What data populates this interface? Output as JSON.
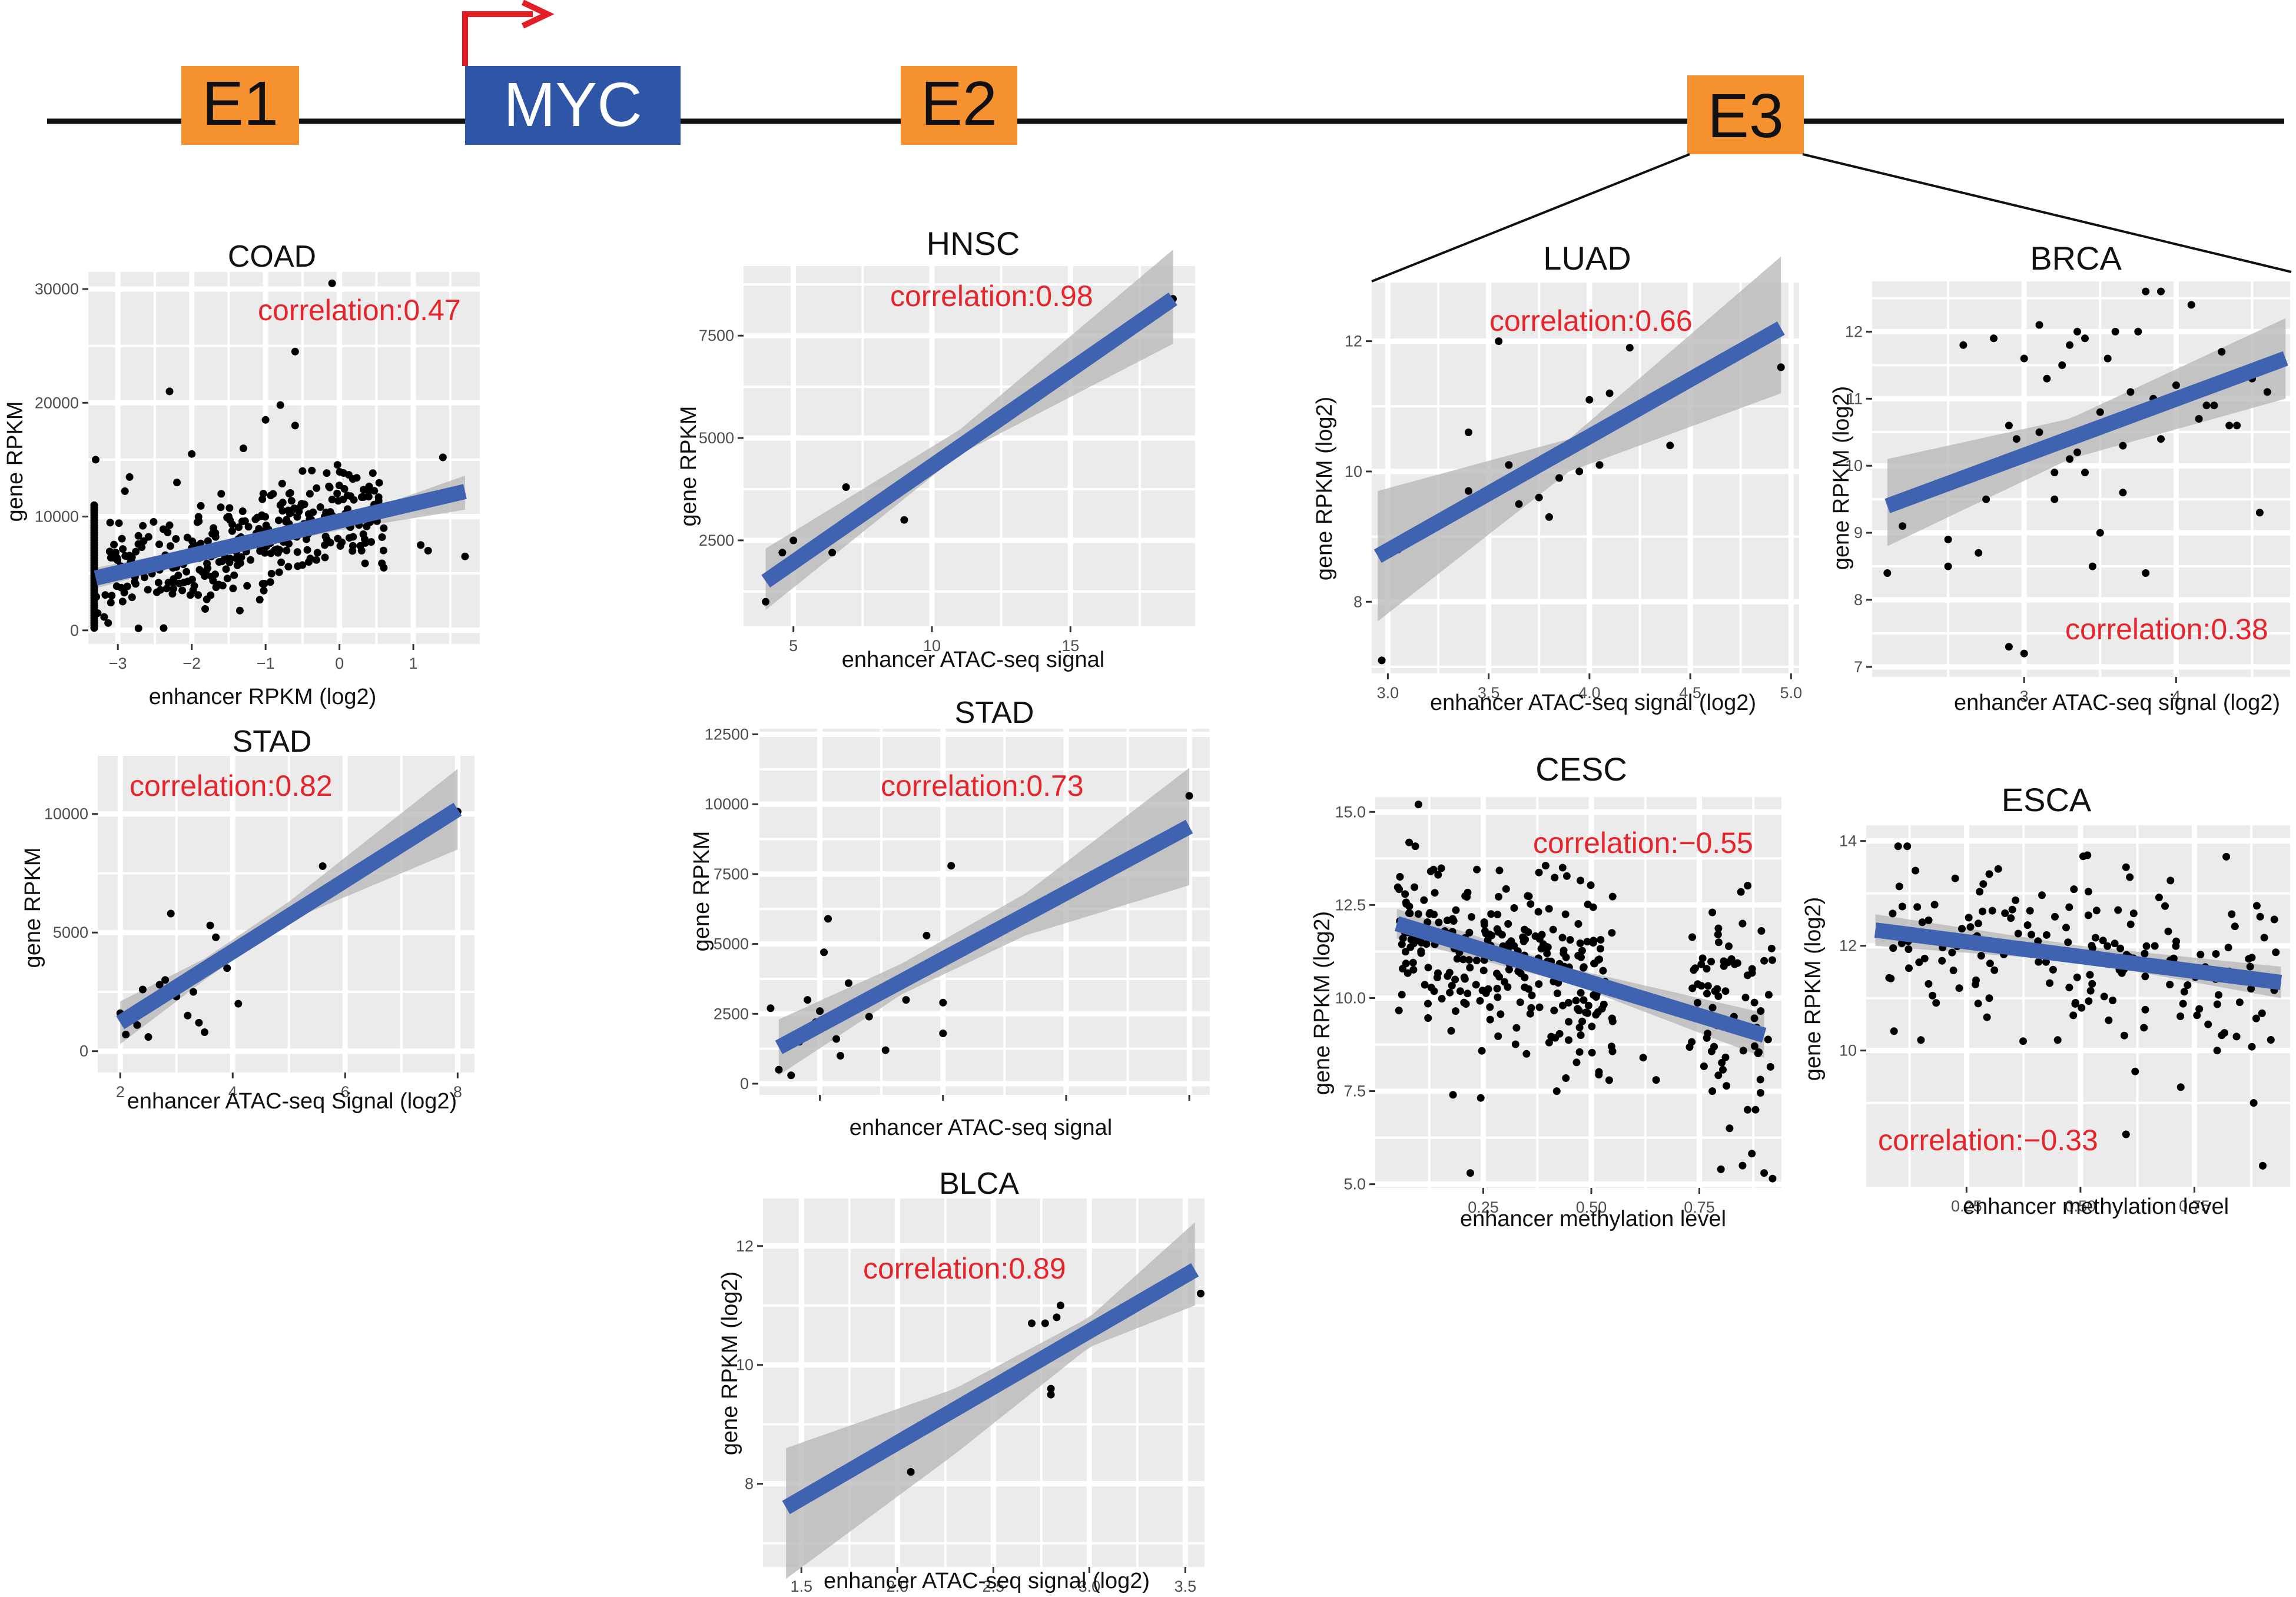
{
  "colors": {
    "enhancer": "#f5922f",
    "gene": "#2f56a6",
    "tss_arrow": "#e31e24",
    "line": "#111111",
    "panel_bg": "#ebebeb",
    "grid": "#ffffff",
    "fit": "#3f63b0",
    "ci": "#b3b3b3",
    "point": "#000000",
    "corr_text": "#e8242a"
  },
  "locus": {
    "elements": [
      {
        "id": "e1",
        "label": "E1",
        "kind": "enhancer"
      },
      {
        "id": "myc",
        "label": "MYC",
        "kind": "gene"
      },
      {
        "id": "e2",
        "label": "E2",
        "kind": "enhancer"
      },
      {
        "id": "e3",
        "label": "E3",
        "kind": "enhancer"
      }
    ]
  },
  "chart_data": [
    {
      "id": "coad",
      "type": "scatter",
      "title": "COAD",
      "xlabel": "enhancer RPKM (log2)",
      "ylabel": "gene RPKM",
      "xlim": [
        -3.4,
        1.9
      ],
      "ylim": [
        -1200,
        31500
      ],
      "xticks": [
        -3,
        -2,
        -1,
        0,
        1
      ],
      "xticklabels": [
        "−3",
        "−2",
        "−1",
        "0",
        "1"
      ],
      "yticks": [
        0,
        10000,
        20000,
        30000
      ],
      "yticklabels": [
        "0",
        "10000",
        "20000",
        "30000"
      ],
      "correlation": "correlation:0.47",
      "fit": {
        "x0": -3.3,
        "y0": 4600,
        "x1": 1.7,
        "y1": 12200
      },
      "ci": {
        "x": [
          -3.3,
          -1.5,
          0,
          1.7
        ],
        "lo": [
          3700,
          6800,
          8800,
          10600
        ],
        "hi": [
          5500,
          7800,
          9700,
          13600
        ]
      },
      "points": [
        [
          -3.3,
          15000
        ],
        [
          -2.3,
          21000
        ],
        [
          -2.0,
          15500
        ],
        [
          -1.6,
          12000
        ],
        [
          -1.3,
          16000
        ],
        [
          -1.0,
          18500
        ],
        [
          -0.8,
          19800
        ],
        [
          -0.6,
          18000
        ],
        [
          -0.6,
          24500
        ],
        [
          -0.1,
          30500
        ],
        [
          -0.5,
          14000
        ],
        [
          -0.4,
          12000
        ],
        [
          1.4,
          15200
        ],
        [
          1.7,
          6500
        ],
        [
          0.3,
          7000
        ],
        [
          0.6,
          5500
        ],
        [
          1.1,
          7500
        ],
        [
          1.2,
          7000
        ],
        [
          -2.2,
          13000
        ],
        [
          -1.5,
          10000
        ],
        [
          -0.8,
          11000
        ],
        [
          -0.2,
          10000
        ]
      ],
      "cloud": {
        "n": 340,
        "xmin": -3.3,
        "xmax": 0.6,
        "sdy": 2300,
        "seed": 11
      },
      "pileup": {
        "x": -3.32,
        "ymin": 200,
        "ymax": 11000,
        "n": 50
      }
    },
    {
      "id": "stad1",
      "type": "scatter",
      "title": "STAD",
      "xlabel": "enhancer ATAC-seq Signal (log2)",
      "ylabel": "gene RPKM",
      "xlim": [
        1.6,
        8.3
      ],
      "ylim": [
        -900,
        12500
      ],
      "xticks": [
        2,
        4,
        6,
        8
      ],
      "xticklabels": [
        "2",
        "4",
        "6",
        "8"
      ],
      "yticks": [
        0,
        5000,
        10000
      ],
      "yticklabels": [
        "0",
        "5000",
        "10000"
      ],
      "correlation": "correlation:0.82",
      "fit": {
        "x0": 2.0,
        "y0": 1200,
        "x1": 8.0,
        "y1": 10200
      },
      "ci": {
        "x": [
          2.0,
          3.5,
          5.0,
          8.0
        ],
        "lo": [
          300,
          3000,
          5500,
          8500
        ],
        "hi": [
          2100,
          3900,
          6300,
          11900
        ]
      },
      "points": [
        [
          2.0,
          1600
        ],
        [
          2.1,
          700
        ],
        [
          2.3,
          1100
        ],
        [
          2.5,
          600
        ],
        [
          2.6,
          2000
        ],
        [
          2.7,
          2800
        ],
        [
          2.8,
          3000
        ],
        [
          2.9,
          5800
        ],
        [
          3.0,
          2300
        ],
        [
          3.2,
          1500
        ],
        [
          3.3,
          2500
        ],
        [
          3.4,
          1200
        ],
        [
          3.5,
          800
        ],
        [
          3.6,
          5300
        ],
        [
          3.7,
          4800
        ],
        [
          3.9,
          3500
        ],
        [
          4.1,
          2000
        ],
        [
          5.6,
          7800
        ],
        [
          8.0,
          10100
        ],
        [
          2.2,
          1300
        ],
        [
          2.4,
          2600
        ]
      ]
    },
    {
      "id": "hnsc",
      "type": "scatter",
      "title": "HNSC",
      "xlabel": "enhancer ATAC-seq signal",
      "ylabel": "gene RPKM",
      "xlim": [
        3.2,
        19.5
      ],
      "ylim": [
        400,
        9200
      ],
      "xticks": [
        5,
        10,
        15
      ],
      "xticklabels": [
        "5",
        "10",
        "15"
      ],
      "yticks": [
        2500,
        5000,
        7500
      ],
      "yticklabels": [
        "2500",
        "5000",
        "7500"
      ],
      "correlation": "correlation:0.98",
      "fit": {
        "x0": 4.0,
        "y0": 1500,
        "x1": 18.7,
        "y1": 8400
      },
      "ci": {
        "x": [
          4.0,
          11.0,
          18.7
        ],
        "lo": [
          800,
          4600,
          7300
        ],
        "hi": [
          2300,
          5200,
          9600
        ]
      },
      "points": [
        [
          4.0,
          1000
        ],
        [
          4.6,
          2200
        ],
        [
          5.0,
          2500
        ],
        [
          6.4,
          2200
        ],
        [
          6.9,
          3800
        ],
        [
          9.0,
          3000
        ],
        [
          18.7,
          8400
        ]
      ]
    },
    {
      "id": "stad2",
      "type": "scatter",
      "title": "STAD",
      "xlabel": "enhancer ATAC-seq signal",
      "ylabel": "gene RPKM",
      "xlim": [
        1.5,
        12.5
      ],
      "ylim": [
        -400,
        12700
      ],
      "xticks": [
        3,
        6,
        9,
        12
      ],
      "xticklabels": [
        "",
        "",
        "",
        ""
      ],
      "yticks": [
        0,
        2500,
        5000,
        7500,
        10000,
        12500
      ],
      "yticklabels": [
        "0",
        "2500",
        "5000",
        "7500",
        "10000",
        "12500"
      ],
      "correlation": "correlation:0.73",
      "fit": {
        "x0": 2.0,
        "y0": 1300,
        "x1": 12.0,
        "y1": 9200
      },
      "ci": {
        "x": [
          2.0,
          5.0,
          8.0,
          12.0
        ],
        "lo": [
          300,
          3200,
          5300,
          7100
        ],
        "hi": [
          2300,
          4300,
          6800,
          11300
        ]
      },
      "points": [
        [
          1.8,
          2700
        ],
        [
          2.0,
          500
        ],
        [
          2.3,
          300
        ],
        [
          2.5,
          1500
        ],
        [
          2.7,
          3000
        ],
        [
          3.0,
          2600
        ],
        [
          3.1,
          4700
        ],
        [
          3.2,
          5900
        ],
        [
          3.4,
          1600
        ],
        [
          3.5,
          1000
        ],
        [
          4.2,
          2400
        ],
        [
          4.6,
          1200
        ],
        [
          5.1,
          3000
        ],
        [
          5.6,
          5300
        ],
        [
          6.0,
          2900
        ],
        [
          6.0,
          1800
        ],
        [
          6.2,
          7800
        ],
        [
          12.0,
          10300
        ],
        [
          2.9,
          2200
        ],
        [
          3.7,
          3600
        ]
      ]
    },
    {
      "id": "blca",
      "type": "scatter",
      "title": "BLCA",
      "xlabel": "enhancer ATAC-seq signal (log2)",
      "ylabel": "gene RPKM (log2)",
      "xlim": [
        1.3,
        3.6
      ],
      "ylim": [
        6.6,
        12.8
      ],
      "xticks": [
        1.5,
        2.0,
        2.5,
        3.0,
        3.5
      ],
      "xticklabels": [
        "1.5",
        "2.0",
        "2.5",
        "3.0",
        "3.5"
      ],
      "yticks": [
        8,
        10,
        12
      ],
      "yticklabels": [
        "8",
        "10",
        "12"
      ],
      "correlation": "correlation:0.89",
      "fit": {
        "x0": 1.42,
        "y0": 7.6,
        "x1": 3.55,
        "y1": 11.6
      },
      "ci": {
        "x": [
          1.42,
          2.3,
          3.0,
          3.55
        ],
        "lo": [
          6.4,
          8.5,
          10.3,
          11.0
        ],
        "hi": [
          8.6,
          9.6,
          10.8,
          12.4
        ]
      },
      "points": [
        [
          2.07,
          8.2
        ],
        [
          2.7,
          10.7
        ],
        [
          2.77,
          10.7
        ],
        [
          2.8,
          9.6
        ],
        [
          2.8,
          9.5
        ],
        [
          2.83,
          10.8
        ],
        [
          2.85,
          11.0
        ],
        [
          3.58,
          11.2
        ]
      ]
    },
    {
      "id": "luad",
      "type": "scatter",
      "title": "LUAD",
      "xlabel": "enhancer ATAC-seq signal (log2)",
      "ylabel": "gene RPKM (log2)",
      "xlim": [
        2.92,
        5.04
      ],
      "ylim": [
        6.9,
        12.9
      ],
      "xticks": [
        3.0,
        3.5,
        4.0,
        4.5,
        5.0
      ],
      "xticklabels": [
        "3.0",
        "3.5",
        "4.0",
        "4.5",
        "5.0"
      ],
      "yticks": [
        8,
        10,
        12
      ],
      "yticklabels": [
        "8",
        "10",
        "12"
      ],
      "correlation": "correlation:0.66",
      "fit": {
        "x0": 2.95,
        "y0": 8.7,
        "x1": 4.95,
        "y1": 12.2
      },
      "ci": {
        "x": [
          2.95,
          3.9,
          4.95
        ],
        "lo": [
          7.7,
          10.0,
          11.2
        ],
        "hi": [
          9.7,
          10.5,
          13.3
        ]
      },
      "points": [
        [
          2.97,
          7.1
        ],
        [
          3.05,
          8.8
        ],
        [
          3.4,
          9.7
        ],
        [
          3.4,
          10.6
        ],
        [
          3.55,
          12.0
        ],
        [
          3.6,
          10.1
        ],
        [
          3.75,
          9.6
        ],
        [
          3.8,
          9.3
        ],
        [
          3.85,
          9.9
        ],
        [
          3.95,
          10.0
        ],
        [
          4.0,
          11.1
        ],
        [
          4.05,
          10.1
        ],
        [
          4.1,
          11.2
        ],
        [
          4.2,
          11.9
        ],
        [
          4.4,
          10.4
        ],
        [
          4.95,
          11.6
        ],
        [
          3.65,
          9.5
        ]
      ]
    },
    {
      "id": "brca",
      "type": "scatter",
      "title": "BRCA",
      "xlabel": "enhancer ATAC-seq signal (log2)",
      "ylabel": "gene RPKM (log2)",
      "xlim": [
        2.0,
        4.75
      ],
      "ylim": [
        6.85,
        12.75
      ],
      "xticks": [
        3,
        4
      ],
      "xticklabels": [
        "3",
        "4"
      ],
      "yticks": [
        7,
        8,
        9,
        10,
        11,
        12
      ],
      "yticklabels": [
        "7",
        "8",
        "9",
        "10",
        "11",
        "12"
      ],
      "correlation": "correlation:0.38",
      "fit": {
        "x0": 2.1,
        "y0": 9.4,
        "x1": 4.72,
        "y1": 11.6
      },
      "ci": {
        "x": [
          2.1,
          3.3,
          4.72
        ],
        "lo": [
          8.8,
          10.1,
          11.0
        ],
        "hi": [
          10.1,
          10.7,
          12.2
        ]
      },
      "points": [
        [
          2.1,
          8.4
        ],
        [
          2.2,
          9.1
        ],
        [
          2.5,
          8.9
        ],
        [
          2.5,
          8.5
        ],
        [
          2.6,
          11.8
        ],
        [
          2.8,
          11.9
        ],
        [
          2.9,
          10.6
        ],
        [
          3.0,
          11.6
        ],
        [
          3.1,
          12.1
        ],
        [
          3.15,
          11.3
        ],
        [
          3.2,
          9.9
        ],
        [
          3.25,
          11.5
        ],
        [
          3.3,
          11.8
        ],
        [
          3.35,
          12.0
        ],
        [
          3.4,
          11.9
        ],
        [
          3.35,
          10.2
        ],
        [
          3.4,
          9.9
        ],
        [
          3.45,
          8.5
        ],
        [
          3.5,
          9.0
        ],
        [
          3.55,
          11.6
        ],
        [
          3.6,
          12.0
        ],
        [
          3.65,
          10.3
        ],
        [
          3.7,
          11.1
        ],
        [
          3.75,
          12.0
        ],
        [
          3.8,
          12.6
        ],
        [
          3.85,
          11.0
        ],
        [
          3.9,
          12.6
        ],
        [
          3.95,
          11.0
        ],
        [
          4.1,
          12.4
        ],
        [
          4.15,
          10.7
        ],
        [
          4.2,
          10.9
        ],
        [
          4.3,
          11.7
        ],
        [
          4.35,
          10.6
        ],
        [
          4.4,
          10.6
        ],
        [
          4.5,
          11.3
        ],
        [
          2.9,
          7.3
        ],
        [
          3.0,
          7.2
        ],
        [
          3.2,
          9.5
        ],
        [
          3.8,
          8.4
        ],
        [
          4.55,
          9.3
        ],
        [
          3.65,
          9.6
        ],
        [
          2.75,
          9.5
        ],
        [
          2.95,
          10.4
        ],
        [
          3.1,
          10.5
        ],
        [
          3.5,
          10.8
        ],
        [
          4.0,
          11.2
        ],
        [
          4.6,
          11.1
        ],
        [
          2.7,
          8.7
        ],
        [
          3.3,
          10.1
        ],
        [
          3.9,
          10.4
        ],
        [
          4.25,
          10.9
        ]
      ]
    },
    {
      "id": "cesc",
      "type": "scatter",
      "title": "CESC",
      "xlabel": "enhancer methylation level",
      "ylabel": "gene RPKM (log2)",
      "xlim": [
        0.0,
        0.94
      ],
      "ylim": [
        4.9,
        15.4
      ],
      "xticks": [
        0.25,
        0.5,
        0.75
      ],
      "xticklabels": [
        "0.25",
        "0.50",
        "0.75"
      ],
      "yticks": [
        5.0,
        7.5,
        10.0,
        12.5,
        15.0
      ],
      "yticklabels": [
        "5.0",
        "7.5",
        "10.0",
        "12.5",
        "15.0"
      ],
      "correlation": "correlation:−0.55",
      "fit": {
        "x0": 0.05,
        "y0": 12.0,
        "x1": 0.9,
        "y1": 9.0
      },
      "ci": {
        "x": [
          0.05,
          0.45,
          0.9
        ],
        "lo": [
          11.6,
          10.4,
          8.4
        ],
        "hi": [
          12.4,
          10.8,
          9.6
        ]
      },
      "points": [
        [
          0.1,
          15.2
        ],
        [
          0.22,
          5.3
        ],
        [
          0.18,
          7.4
        ],
        [
          0.35,
          8.5
        ],
        [
          0.42,
          7.5
        ],
        [
          0.62,
          8.4
        ],
        [
          0.65,
          7.8
        ],
        [
          0.8,
          5.4
        ],
        [
          0.85,
          5.5
        ],
        [
          0.9,
          5.3
        ],
        [
          0.82,
          6.5
        ],
        [
          0.88,
          7.0
        ],
        [
          0.78,
          12.3
        ],
        [
          0.85,
          12.0
        ],
        [
          0.9,
          11.0
        ],
        [
          0.83,
          9.5
        ]
      ],
      "cloud": {
        "n": 280,
        "xmin": 0.05,
        "xmax": 0.55,
        "sdy": 1.1,
        "seed": 23
      },
      "cloud2": {
        "n": 70,
        "xmin": 0.72,
        "xmax": 0.92,
        "sdy": 1.6,
        "seed": 37
      }
    },
    {
      "id": "esca",
      "type": "scatter",
      "title": "ESCA",
      "xlabel": "enhancer methylation level",
      "ylabel": "gene RPKM (log2)",
      "xlim": [
        0.03,
        0.96
      ],
      "ylim": [
        7.4,
        14.3
      ],
      "xticks": [
        0.25,
        0.5,
        0.75
      ],
      "xticklabels": [
        "0.25",
        "0.50",
        "0.75"
      ],
      "yticks": [
        10,
        12,
        14
      ],
      "yticklabels": [
        "10",
        "12",
        "14"
      ],
      "correlation": "correlation:−0.33",
      "fit": {
        "x0": 0.05,
        "y0": 12.3,
        "x1": 0.94,
        "y1": 11.3
      },
      "ci": {
        "x": [
          0.05,
          0.5,
          0.94
        ],
        "lo": [
          12.0,
          11.7,
          11.0
        ],
        "hi": [
          12.6,
          12.0,
          11.6
        ]
      },
      "points": [
        [
          0.1,
          13.9
        ],
        [
          0.12,
          13.9
        ],
        [
          0.6,
          8.4
        ],
        [
          0.62,
          9.6
        ],
        [
          0.72,
          9.3
        ],
        [
          0.8,
          10.0
        ],
        [
          0.9,
          7.8
        ],
        [
          0.82,
          13.7
        ],
        [
          0.6,
          13.5
        ],
        [
          0.3,
          11.0
        ],
        [
          0.45,
          10.2
        ],
        [
          0.88,
          9.0
        ],
        [
          0.15,
          10.2
        ]
      ],
      "cloud": {
        "n": 170,
        "xmin": 0.07,
        "xmax": 0.93,
        "sdy": 0.75,
        "seed": 41
      }
    }
  ]
}
